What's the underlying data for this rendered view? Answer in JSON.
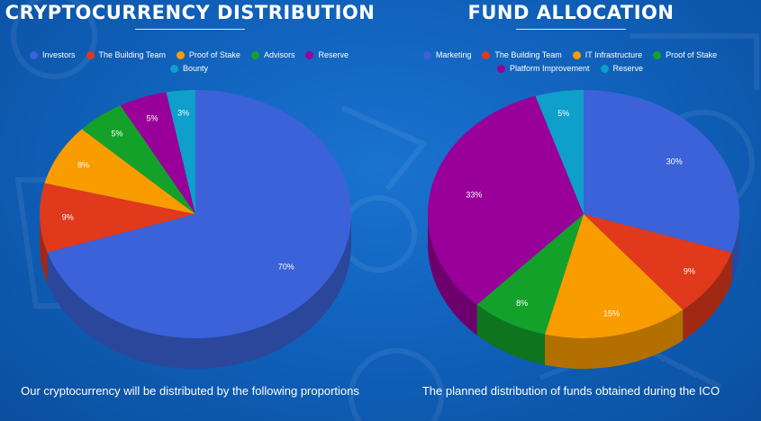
{
  "chart_data": [
    {
      "type": "pie",
      "title": "CRYPTOCURRENCY DISTRIBUTION",
      "caption": "Our cryptocurrency will be distributed by the following proportions",
      "legend_position": "top",
      "categories": [
        "Investors",
        "The Building Team",
        "Proof of Stake",
        "Advisors",
        "Reserve",
        "Bounty"
      ],
      "values": [
        70,
        9,
        8,
        5,
        5,
        3
      ],
      "labels": [
        "70%",
        "9%",
        "8%",
        "5%",
        "5%",
        "3%"
      ],
      "colors": [
        "#3b62d8",
        "#e0391c",
        "#f99c00",
        "#13a12a",
        "#990099",
        "#0e9fcb"
      ]
    },
    {
      "type": "pie",
      "title": "FUND ALLOCATION",
      "caption": "The planned distribution of funds obtained during the ICO",
      "legend_position": "top",
      "categories": [
        "Marketing",
        "The Building Team",
        "IT Infrastructure",
        "Proof of Stake",
        "Platform Improvement",
        "Reserve"
      ],
      "values": [
        30,
        9,
        15,
        8,
        33,
        5
      ],
      "labels": [
        "30%",
        "9%",
        "15%",
        "8%",
        "33%",
        "5%"
      ],
      "colors": [
        "#3b62d8",
        "#e0391c",
        "#f99c00",
        "#13a12a",
        "#990099",
        "#0e9fcb"
      ]
    }
  ]
}
